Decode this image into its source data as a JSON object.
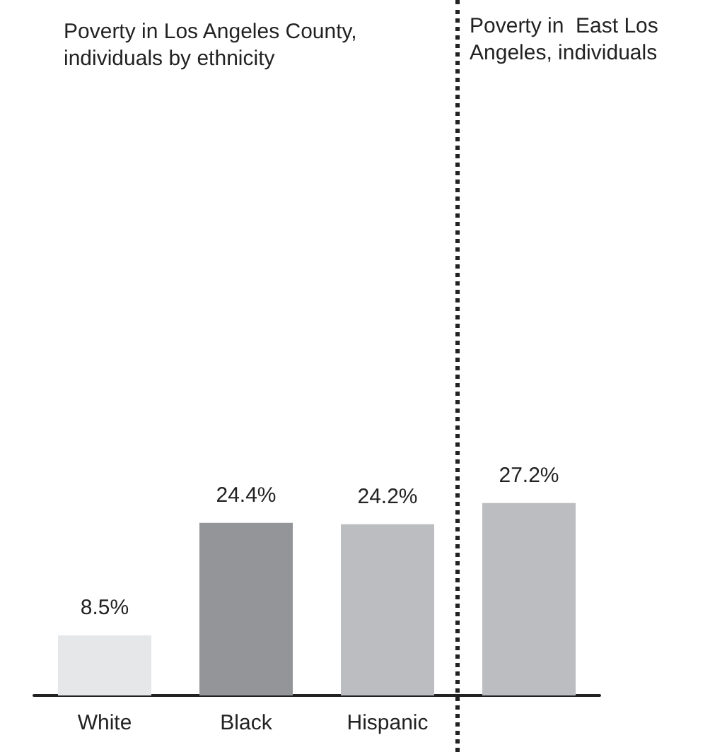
{
  "chart_data": {
    "type": "bar",
    "title": "Poverty in Los Angeles County, individuals by ethnicity",
    "annotations": [
      "Poverty in  East Los Angeles, individuals"
    ],
    "categories": [
      "White",
      "Black",
      "Hispanic",
      null
    ],
    "values": [
      8.5,
      24.4,
      24.2,
      27.2
    ],
    "colors": [
      "#e6e7e8",
      "#939598",
      "#bcbdc0",
      "#bcbdc0"
    ],
    "value_labels": [
      "8.5%",
      "24.4%",
      "24.2%",
      "27.2%"
    ]
  }
}
